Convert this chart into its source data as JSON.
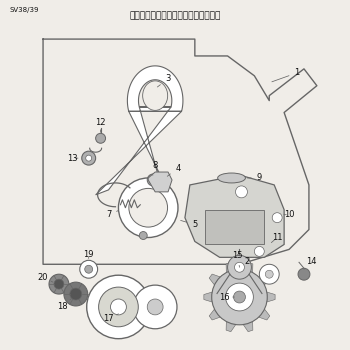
{
  "title": "第四図　クラッチ＆チェンブレーキ部",
  "subtitle": "SV38/39",
  "bg": "#f0ede8",
  "lc": "#666666",
  "tc": "#111111",
  "fig_width": 3.5,
  "fig_height": 3.5,
  "dpi": 100
}
